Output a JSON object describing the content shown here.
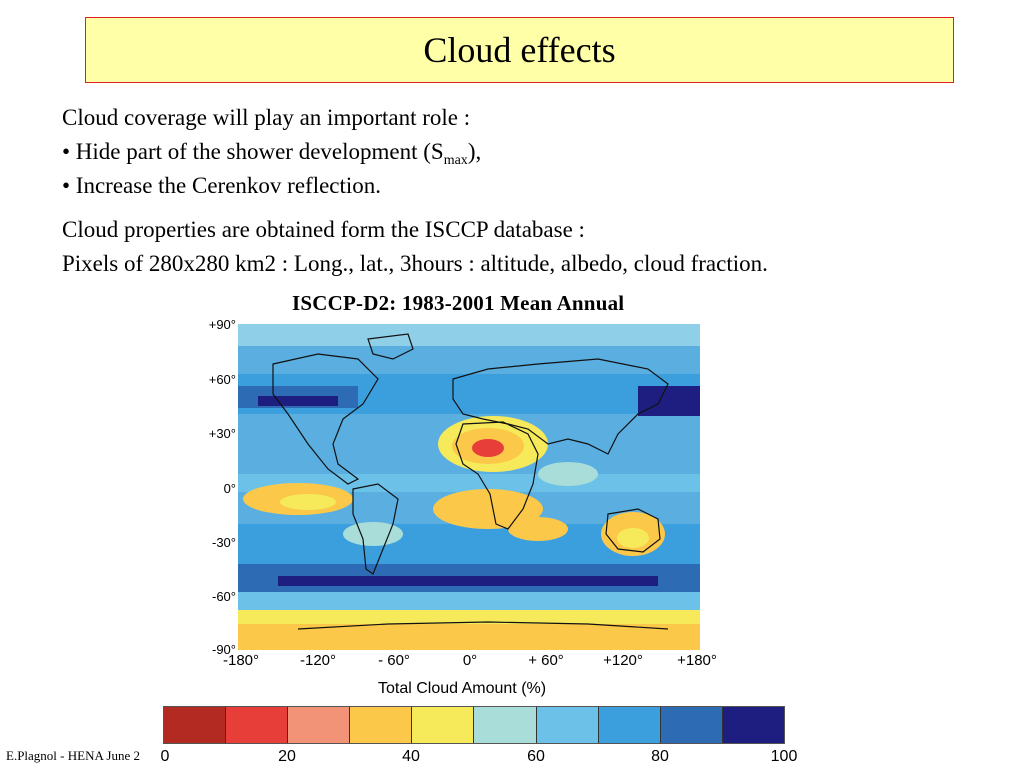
{
  "slide": {
    "title": "Cloud effects",
    "line1": "Cloud coverage will play an important role :",
    "line2_prefix": "• Hide part of the shower development (S",
    "line2_sub": "max",
    "line2_suffix": "),",
    "line3": "• Increase the Cerenkov reflection.",
    "line4": "Cloud properties are obtained form the  ISCCP database :",
    "line5": "Pixels of 280x280 km2 : Long., lat., 3hours : altitude, albedo, cloud fraction.",
    "footer": "E.Plagnol - HENA June 2"
  },
  "figure": {
    "title": "ISCCP-D2:  1983-2001  Mean  Annual",
    "lat_labels": [
      "+90°",
      "+60°",
      "+30°",
      "0°",
      "-30°",
      "-60°",
      "-90°"
    ],
    "lon_labels": [
      "-180°",
      "-120°",
      "- 60°",
      "0°",
      "+ 60°",
      "+120°",
      "+180°"
    ],
    "colorbar_title": "Total Cloud Amount (%)",
    "colorbar_ticks": [
      "0",
      "20",
      "40",
      "60",
      "80",
      "100"
    ],
    "colorbar_colors": [
      "#b22a22",
      "#e83e3a",
      "#f29276",
      "#fcc84a",
      "#f6ea5a",
      "#a9ddd9",
      "#6cc1e8",
      "#3b9fde",
      "#2d6cb5",
      "#1e1e80"
    ]
  }
}
